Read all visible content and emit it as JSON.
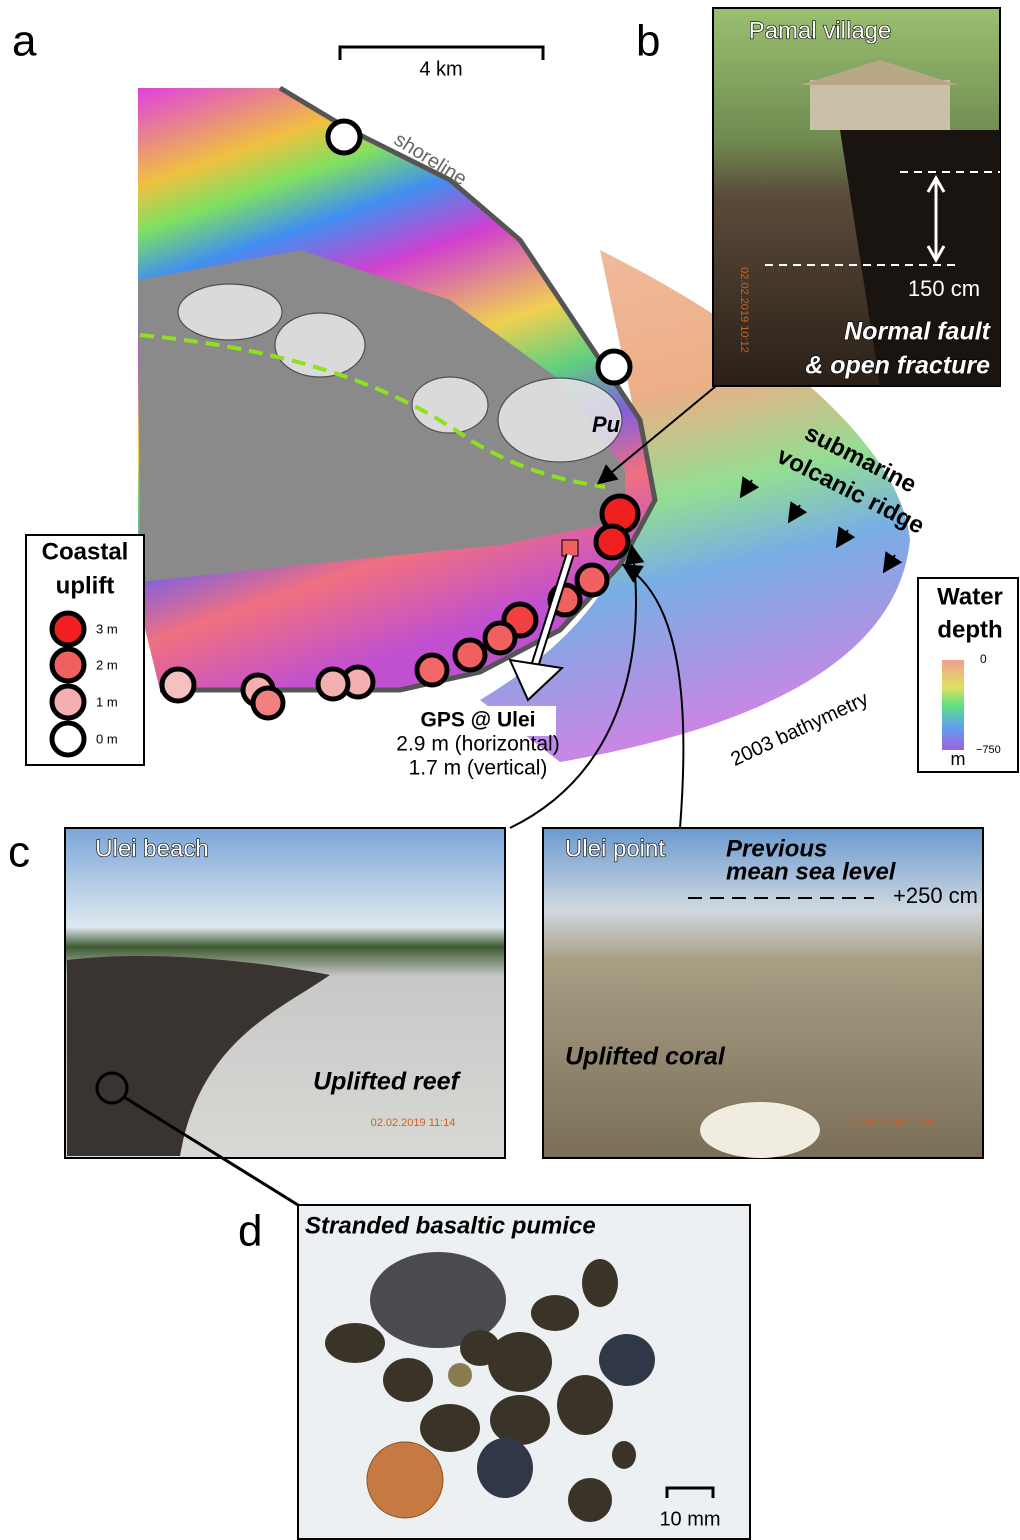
{
  "panels": {
    "a": {
      "label": "a",
      "scale_bar": "4 km",
      "shoreline": "shoreline",
      "crater": "Pu",
      "ridge": [
        "submarine",
        "volcanic ridge"
      ],
      "legend": {
        "title": [
          "Coastal",
          "uplift"
        ],
        "items": [
          "3 m",
          "2 m",
          "1 m",
          "0 m"
        ]
      },
      "gps": {
        "title": "GPS @ Ulei",
        "lines": [
          "2.9 m (horizontal)",
          "1.7 m (vertical)"
        ]
      },
      "bathymetry": "2003 bathymetry",
      "depth_legend": {
        "title": [
          "Water",
          "depth"
        ],
        "top": "0",
        "bottom": "−750",
        "unit": "m"
      }
    },
    "b": {
      "label": "b",
      "title": "Pamal village",
      "offset": "150 cm",
      "caption": [
        "Normal fault",
        "& open fracture"
      ],
      "timestamp": "02.02.2019 10:12"
    },
    "c": {
      "label": "c",
      "left": {
        "title": "Ulei beach",
        "caption": "Uplifted reef",
        "timestamp": "02.02.2019 11:14"
      },
      "right": {
        "title": "Ulei point",
        "note": [
          "Previous",
          "mean sea level"
        ],
        "offset": "+250 cm",
        "caption": "Uplifted coral",
        "timestamp": "02.02.2019 10:06"
      }
    },
    "d": {
      "label": "d",
      "title": "Stranded basaltic pumice",
      "scale_bar": "10 mm"
    }
  }
}
